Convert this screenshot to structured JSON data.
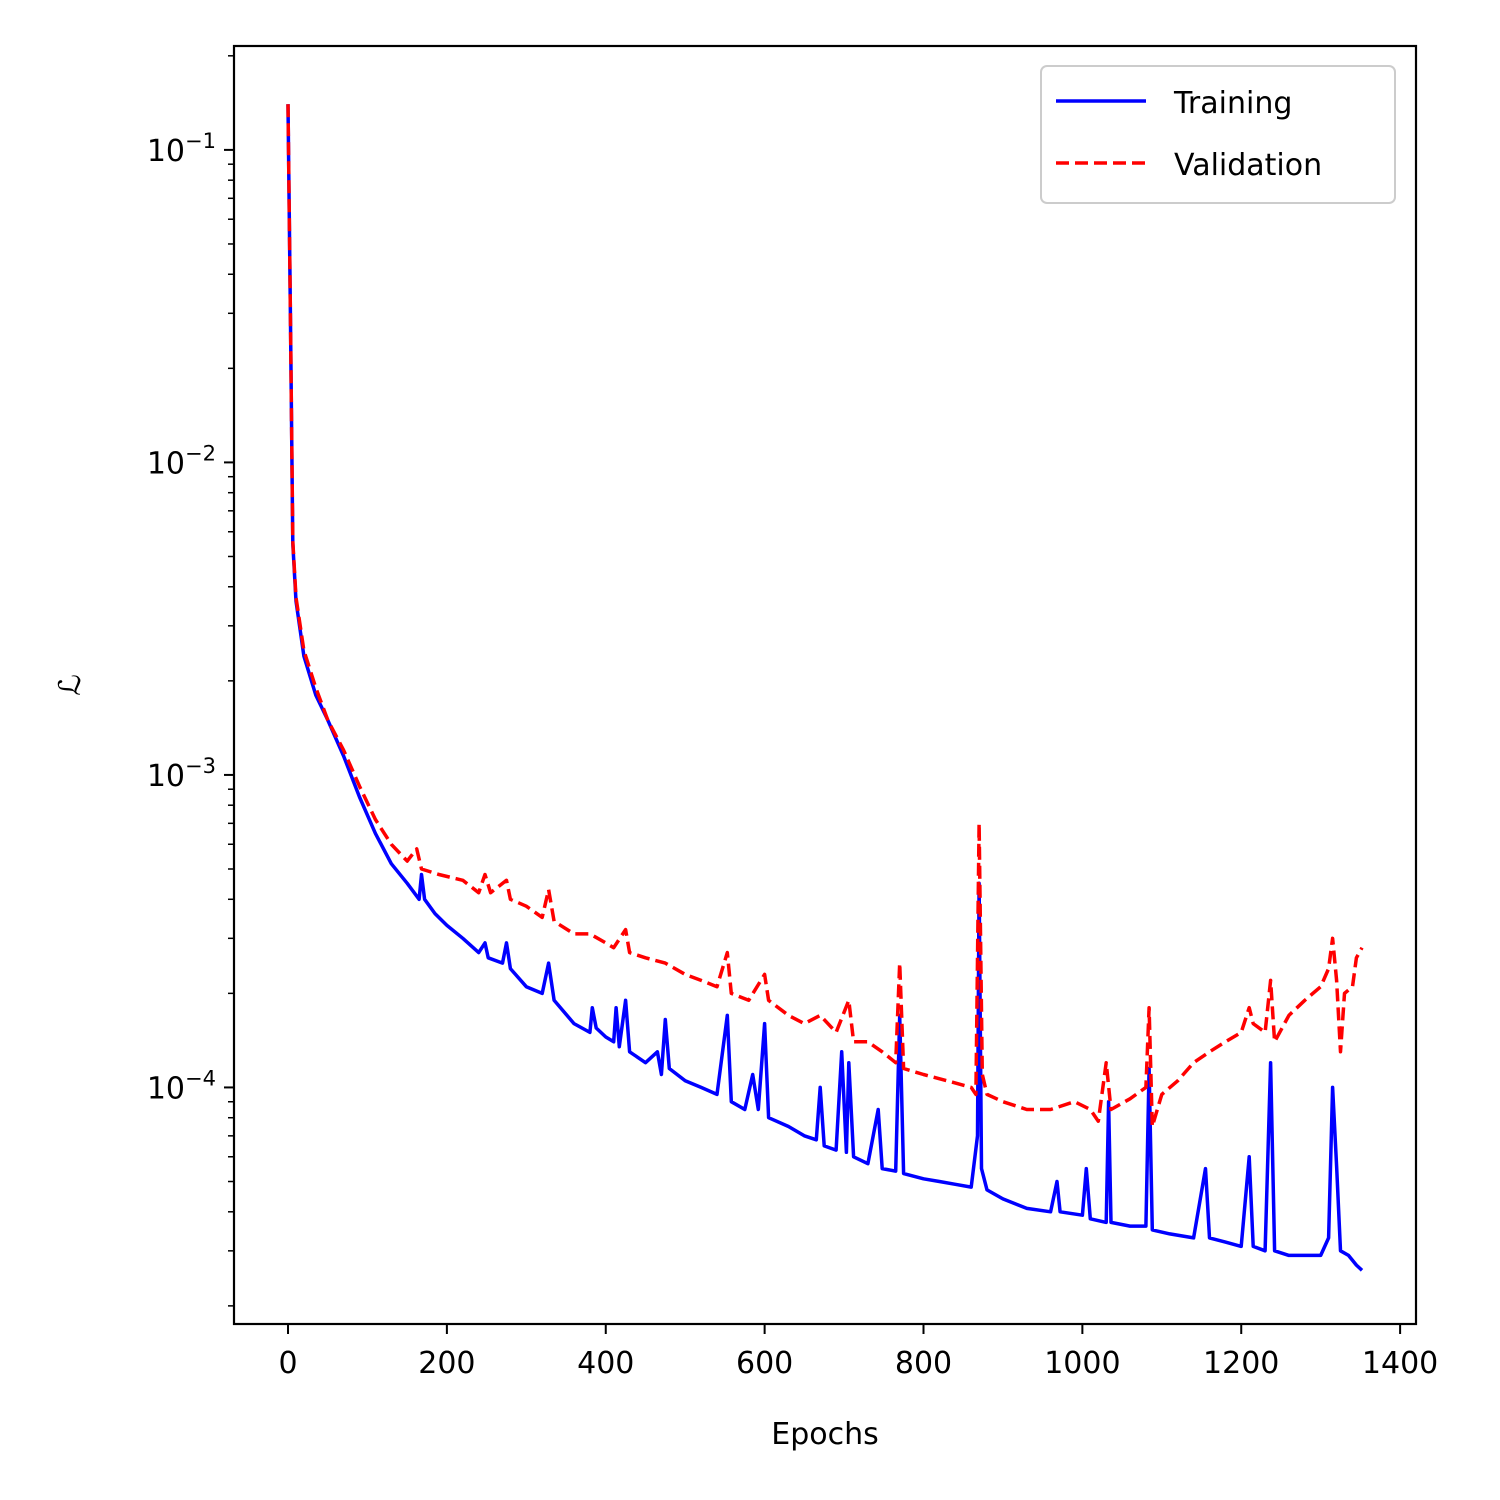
{
  "chart_data": {
    "type": "line",
    "xlabel": "Epochs",
    "ylabel": "ℒ",
    "xlim": [
      -68,
      1420
    ],
    "ylim": [
      1.75e-05,
      0.215
    ],
    "yscale": "log",
    "x_ticks": [
      0,
      200,
      400,
      600,
      800,
      1000,
      1200,
      1400
    ],
    "x_tick_labels": [
      "0",
      "200",
      "400",
      "600",
      "800",
      "1000",
      "1200",
      "1400"
    ],
    "y_ticks": [
      0.1,
      0.01,
      0.001,
      0.0001
    ],
    "y_tick_labels": [
      {
        "base": "10",
        "exp": "−1"
      },
      {
        "base": "10",
        "exp": "−2"
      },
      {
        "base": "10",
        "exp": "−3"
      },
      {
        "base": "10",
        "exp": "−4"
      }
    ],
    "grid": false,
    "legend_position": "top-right",
    "series": [
      {
        "name": "Training",
        "color": "#0000ff",
        "style": "solid",
        "points": [
          [
            0,
            0.14
          ],
          [
            3,
            0.03
          ],
          [
            6,
            0.0055
          ],
          [
            10,
            0.0036
          ],
          [
            20,
            0.0024
          ],
          [
            35,
            0.0018
          ],
          [
            50,
            0.0015
          ],
          [
            70,
            0.00115
          ],
          [
            90,
            0.00085
          ],
          [
            110,
            0.00065
          ],
          [
            130,
            0.00052
          ],
          [
            150,
            0.00045
          ],
          [
            165,
            0.0004
          ],
          [
            168,
            0.00048
          ],
          [
            172,
            0.0004
          ],
          [
            185,
            0.00036
          ],
          [
            200,
            0.00033
          ],
          [
            220,
            0.0003
          ],
          [
            240,
            0.00027
          ],
          [
            248,
            0.00029
          ],
          [
            252,
            0.00026
          ],
          [
            270,
            0.00025
          ],
          [
            275,
            0.00029
          ],
          [
            280,
            0.00024
          ],
          [
            300,
            0.00021
          ],
          [
            320,
            0.0002
          ],
          [
            328,
            0.00025
          ],
          [
            335,
            0.00019
          ],
          [
            360,
            0.00016
          ],
          [
            380,
            0.00015
          ],
          [
            383,
            0.00018
          ],
          [
            388,
            0.000155
          ],
          [
            400,
            0.000145
          ],
          [
            410,
            0.00014
          ],
          [
            413,
            0.00018
          ],
          [
            417,
            0.000135
          ],
          [
            425,
            0.00019
          ],
          [
            430,
            0.00013
          ],
          [
            450,
            0.00012
          ],
          [
            465,
            0.00013
          ],
          [
            470,
            0.00011
          ],
          [
            475,
            0.000165
          ],
          [
            480,
            0.000115
          ],
          [
            500,
            0.000105
          ],
          [
            520,
            0.0001
          ],
          [
            540,
            9.5e-05
          ],
          [
            553,
            0.00017
          ],
          [
            558,
            9e-05
          ],
          [
            575,
            8.5e-05
          ],
          [
            585,
            0.00011
          ],
          [
            592,
            8.5e-05
          ],
          [
            600,
            0.00016
          ],
          [
            605,
            8e-05
          ],
          [
            630,
            7.5e-05
          ],
          [
            650,
            7e-05
          ],
          [
            665,
            6.8e-05
          ],
          [
            670,
            0.0001
          ],
          [
            675,
            6.5e-05
          ],
          [
            690,
            6.3e-05
          ],
          [
            697,
            0.00013
          ],
          [
            703,
            6.2e-05
          ],
          [
            706,
            0.00012
          ],
          [
            712,
            6e-05
          ],
          [
            730,
            5.7e-05
          ],
          [
            743,
            8.5e-05
          ],
          [
            748,
            5.5e-05
          ],
          [
            765,
            5.4e-05
          ],
          [
            770,
            0.00017
          ],
          [
            775,
            5.3e-05
          ],
          [
            800,
            5.1e-05
          ],
          [
            820,
            5e-05
          ],
          [
            840,
            4.9e-05
          ],
          [
            860,
            4.8e-05
          ],
          [
            868,
            7e-05
          ],
          [
            870,
            0.00045
          ],
          [
            873,
            5.5e-05
          ],
          [
            880,
            4.7e-05
          ],
          [
            900,
            4.4e-05
          ],
          [
            930,
            4.1e-05
          ],
          [
            960,
            4e-05
          ],
          [
            968,
            5e-05
          ],
          [
            972,
            4e-05
          ],
          [
            1000,
            3.9e-05
          ],
          [
            1005,
            5.5e-05
          ],
          [
            1010,
            3.8e-05
          ],
          [
            1030,
            3.7e-05
          ],
          [
            1033,
            9e-05
          ],
          [
            1036,
            3.7e-05
          ],
          [
            1060,
            3.6e-05
          ],
          [
            1080,
            3.6e-05
          ],
          [
            1084,
            0.000115
          ],
          [
            1088,
            3.5e-05
          ],
          [
            1110,
            3.4e-05
          ],
          [
            1140,
            3.3e-05
          ],
          [
            1155,
            5.5e-05
          ],
          [
            1160,
            3.3e-05
          ],
          [
            1180,
            3.2e-05
          ],
          [
            1200,
            3.1e-05
          ],
          [
            1210,
            6e-05
          ],
          [
            1215,
            3.1e-05
          ],
          [
            1230,
            3e-05
          ],
          [
            1237,
            0.00012
          ],
          [
            1242,
            3e-05
          ],
          [
            1260,
            2.9e-05
          ],
          [
            1280,
            2.9e-05
          ],
          [
            1300,
            2.9e-05
          ],
          [
            1310,
            3.3e-05
          ],
          [
            1315,
            0.0001
          ],
          [
            1320,
            5.6e-05
          ],
          [
            1325,
            3e-05
          ],
          [
            1335,
            2.9e-05
          ],
          [
            1345,
            2.7e-05
          ],
          [
            1352,
            2.6e-05
          ]
        ]
      },
      {
        "name": "Validation",
        "color": "#ff0000",
        "style": "dashed",
        "points": [
          [
            0,
            0.14
          ],
          [
            3,
            0.03
          ],
          [
            6,
            0.0056
          ],
          [
            10,
            0.0037
          ],
          [
            20,
            0.0025
          ],
          [
            35,
            0.0019
          ],
          [
            50,
            0.0015
          ],
          [
            70,
            0.0012
          ],
          [
            90,
            0.00092
          ],
          [
            110,
            0.00072
          ],
          [
            130,
            0.0006
          ],
          [
            150,
            0.00053
          ],
          [
            162,
            0.00058
          ],
          [
            168,
            0.0005
          ],
          [
            190,
            0.00048
          ],
          [
            220,
            0.00046
          ],
          [
            240,
            0.00042
          ],
          [
            248,
            0.00048
          ],
          [
            255,
            0.00042
          ],
          [
            275,
            0.00046
          ],
          [
            280,
            0.0004
          ],
          [
            300,
            0.00038
          ],
          [
            320,
            0.00035
          ],
          [
            328,
            0.00043
          ],
          [
            335,
            0.00034
          ],
          [
            360,
            0.00031
          ],
          [
            380,
            0.00031
          ],
          [
            400,
            0.00029
          ],
          [
            410,
            0.00028
          ],
          [
            425,
            0.00032
          ],
          [
            430,
            0.00027
          ],
          [
            450,
            0.00026
          ],
          [
            475,
            0.00025
          ],
          [
            500,
            0.00023
          ],
          [
            520,
            0.00022
          ],
          [
            540,
            0.00021
          ],
          [
            553,
            0.00027
          ],
          [
            558,
            0.0002
          ],
          [
            580,
            0.00019
          ],
          [
            600,
            0.00023
          ],
          [
            605,
            0.00019
          ],
          [
            630,
            0.00017
          ],
          [
            650,
            0.00016
          ],
          [
            670,
            0.00017
          ],
          [
            690,
            0.00015
          ],
          [
            706,
            0.00019
          ],
          [
            712,
            0.00014
          ],
          [
            730,
            0.00014
          ],
          [
            748,
            0.00013
          ],
          [
            765,
            0.00012
          ],
          [
            770,
            0.00025
          ],
          [
            775,
            0.000115
          ],
          [
            800,
            0.00011
          ],
          [
            830,
            0.000105
          ],
          [
            860,
            0.0001
          ],
          [
            866,
            9.5e-05
          ],
          [
            870,
            0.0007
          ],
          [
            874,
            0.00011
          ],
          [
            880,
            9.5e-05
          ],
          [
            900,
            9e-05
          ],
          [
            930,
            8.5e-05
          ],
          [
            960,
            8.5e-05
          ],
          [
            990,
            9e-05
          ],
          [
            1010,
            8.5e-05
          ],
          [
            1020,
            7.8e-05
          ],
          [
            1030,
            0.00012
          ],
          [
            1036,
            8.5e-05
          ],
          [
            1060,
            9.2e-05
          ],
          [
            1080,
            0.0001
          ],
          [
            1084,
            0.00018
          ],
          [
            1088,
            7.5e-05
          ],
          [
            1100,
            9.5e-05
          ],
          [
            1120,
            0.000105
          ],
          [
            1140,
            0.00012
          ],
          [
            1160,
            0.00013
          ],
          [
            1180,
            0.00014
          ],
          [
            1200,
            0.00015
          ],
          [
            1210,
            0.00018
          ],
          [
            1215,
            0.00016
          ],
          [
            1230,
            0.00015
          ],
          [
            1237,
            0.00022
          ],
          [
            1242,
            0.00014
          ],
          [
            1260,
            0.00017
          ],
          [
            1280,
            0.00019
          ],
          [
            1300,
            0.00021
          ],
          [
            1310,
            0.00024
          ],
          [
            1315,
            0.0003
          ],
          [
            1320,
            0.00022
          ],
          [
            1325,
            0.00013
          ],
          [
            1330,
            0.0002
          ],
          [
            1340,
            0.00021
          ],
          [
            1345,
            0.00026
          ],
          [
            1352,
            0.00028
          ]
        ]
      }
    ]
  }
}
